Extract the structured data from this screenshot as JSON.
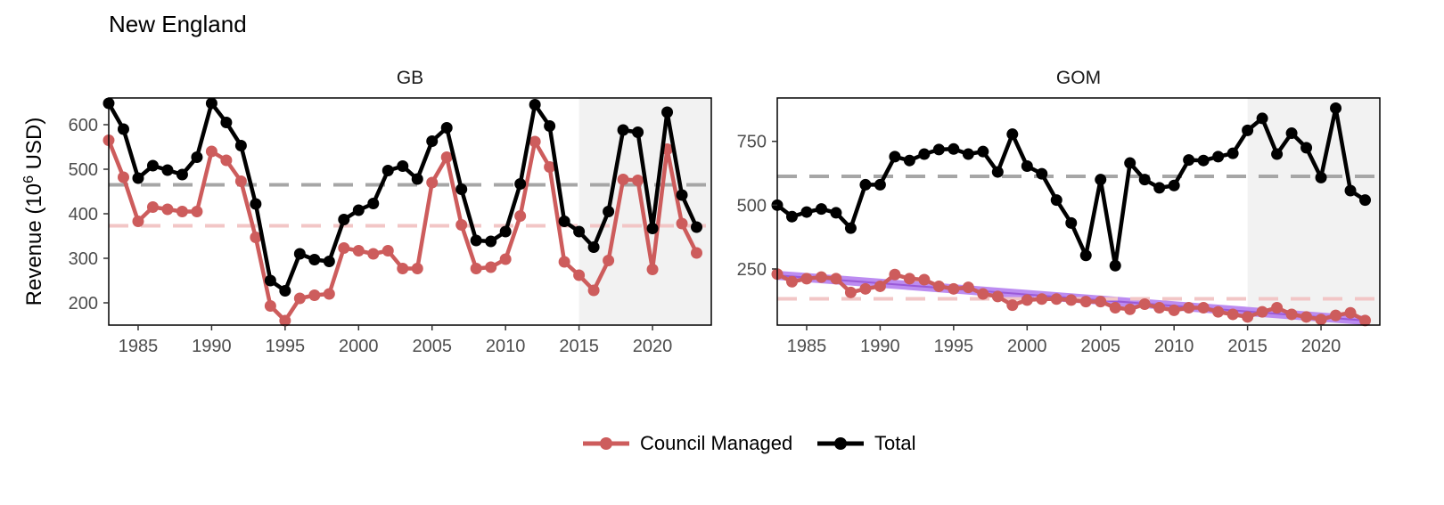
{
  "title": "New England",
  "colors": {
    "council": "#cd5c5c",
    "total": "#000000",
    "avg_total": "#a6a6a6",
    "avg_council": "#f2c6c6",
    "shade": "#f2f2f2",
    "trend_fill": "#b57ff0"
  },
  "chart_data": [
    {
      "type": "line",
      "panel": "GB",
      "ylabel_main": "Revenue (10",
      "ylabel_sup": "6",
      "ylabel_tail": " USD)",
      "xlim": [
        1983,
        2024
      ],
      "ylim": [
        150,
        660
      ],
      "x_ticks": [
        1985,
        1990,
        1995,
        2000,
        2005,
        2010,
        2015,
        2020
      ],
      "y_ticks": [
        200,
        300,
        400,
        500,
        600
      ],
      "shade_range": [
        2015,
        2024
      ],
      "avg_total": 465,
      "avg_council": 373,
      "x": [
        1983,
        1984,
        1985,
        1986,
        1987,
        1988,
        1989,
        1990,
        1991,
        1992,
        1993,
        1994,
        1995,
        1996,
        1997,
        1998,
        1999,
        2000,
        2001,
        2002,
        2003,
        2004,
        2005,
        2006,
        2007,
        2008,
        2009,
        2010,
        2011,
        2012,
        2013,
        2014,
        2015,
        2016,
        2017,
        2018,
        2019,
        2020,
        2021,
        2022,
        2023
      ],
      "series": [
        {
          "name": "Council Managed",
          "values": [
            565,
            482,
            383,
            415,
            410,
            405,
            405,
            540,
            520,
            473,
            347,
            193,
            160,
            210,
            217,
            220,
            323,
            317,
            310,
            317,
            277,
            277,
            470,
            527,
            375,
            277,
            280,
            298,
            395,
            562,
            505,
            292,
            262,
            228,
            295,
            477,
            475,
            275,
            545,
            378,
            312
          ]
        },
        {
          "name": "Total",
          "values": [
            648,
            590,
            480,
            508,
            498,
            488,
            527,
            648,
            605,
            553,
            422,
            250,
            227,
            310,
            297,
            293,
            387,
            408,
            423,
            497,
            507,
            478,
            563,
            593,
            455,
            340,
            338,
            360,
            467,
            645,
            597,
            383,
            360,
            325,
            405,
            588,
            583,
            367,
            628,
            442,
            370
          ]
        }
      ]
    },
    {
      "type": "line",
      "panel": "GOM",
      "xlim": [
        1983,
        2024
      ],
      "ylim": [
        30,
        920
      ],
      "x_ticks": [
        1985,
        1990,
        1995,
        2000,
        2005,
        2010,
        2015,
        2020
      ],
      "y_ticks": [
        250,
        500,
        750
      ],
      "shade_range": [
        2015,
        2024
      ],
      "avg_total": 613,
      "avg_council": 133,
      "trend": {
        "start": [
          1983,
          225
        ],
        "end": [
          2023,
          48
        ],
        "band_halfwidth": 18
      },
      "x": [
        1983,
        1984,
        1985,
        1986,
        1987,
        1988,
        1989,
        1990,
        1991,
        1992,
        1993,
        1994,
        1995,
        1996,
        1997,
        1998,
        1999,
        2000,
        2001,
        2002,
        2003,
        2004,
        2005,
        2006,
        2007,
        2008,
        2009,
        2010,
        2011,
        2012,
        2013,
        2014,
        2015,
        2016,
        2017,
        2018,
        2019,
        2020,
        2021,
        2022,
        2023
      ],
      "series": [
        {
          "name": "Council Managed",
          "values": [
            230,
            200,
            212,
            218,
            212,
            158,
            172,
            182,
            228,
            212,
            208,
            182,
            172,
            178,
            152,
            142,
            108,
            128,
            132,
            132,
            128,
            122,
            122,
            98,
            92,
            112,
            98,
            88,
            98,
            98,
            82,
            72,
            62,
            82,
            98,
            72,
            62,
            52,
            68,
            78,
            48
          ]
        },
        {
          "name": "Total",
          "values": [
            500,
            455,
            473,
            485,
            470,
            410,
            580,
            580,
            690,
            675,
            700,
            718,
            720,
            700,
            710,
            630,
            778,
            653,
            623,
            520,
            430,
            303,
            600,
            263,
            665,
            600,
            568,
            577,
            677,
            675,
            690,
            703,
            793,
            840,
            700,
            782,
            725,
            608,
            880,
            557,
            520
          ]
        }
      ]
    }
  ],
  "legend": [
    {
      "name": "Council Managed"
    },
    {
      "name": "Total"
    }
  ]
}
